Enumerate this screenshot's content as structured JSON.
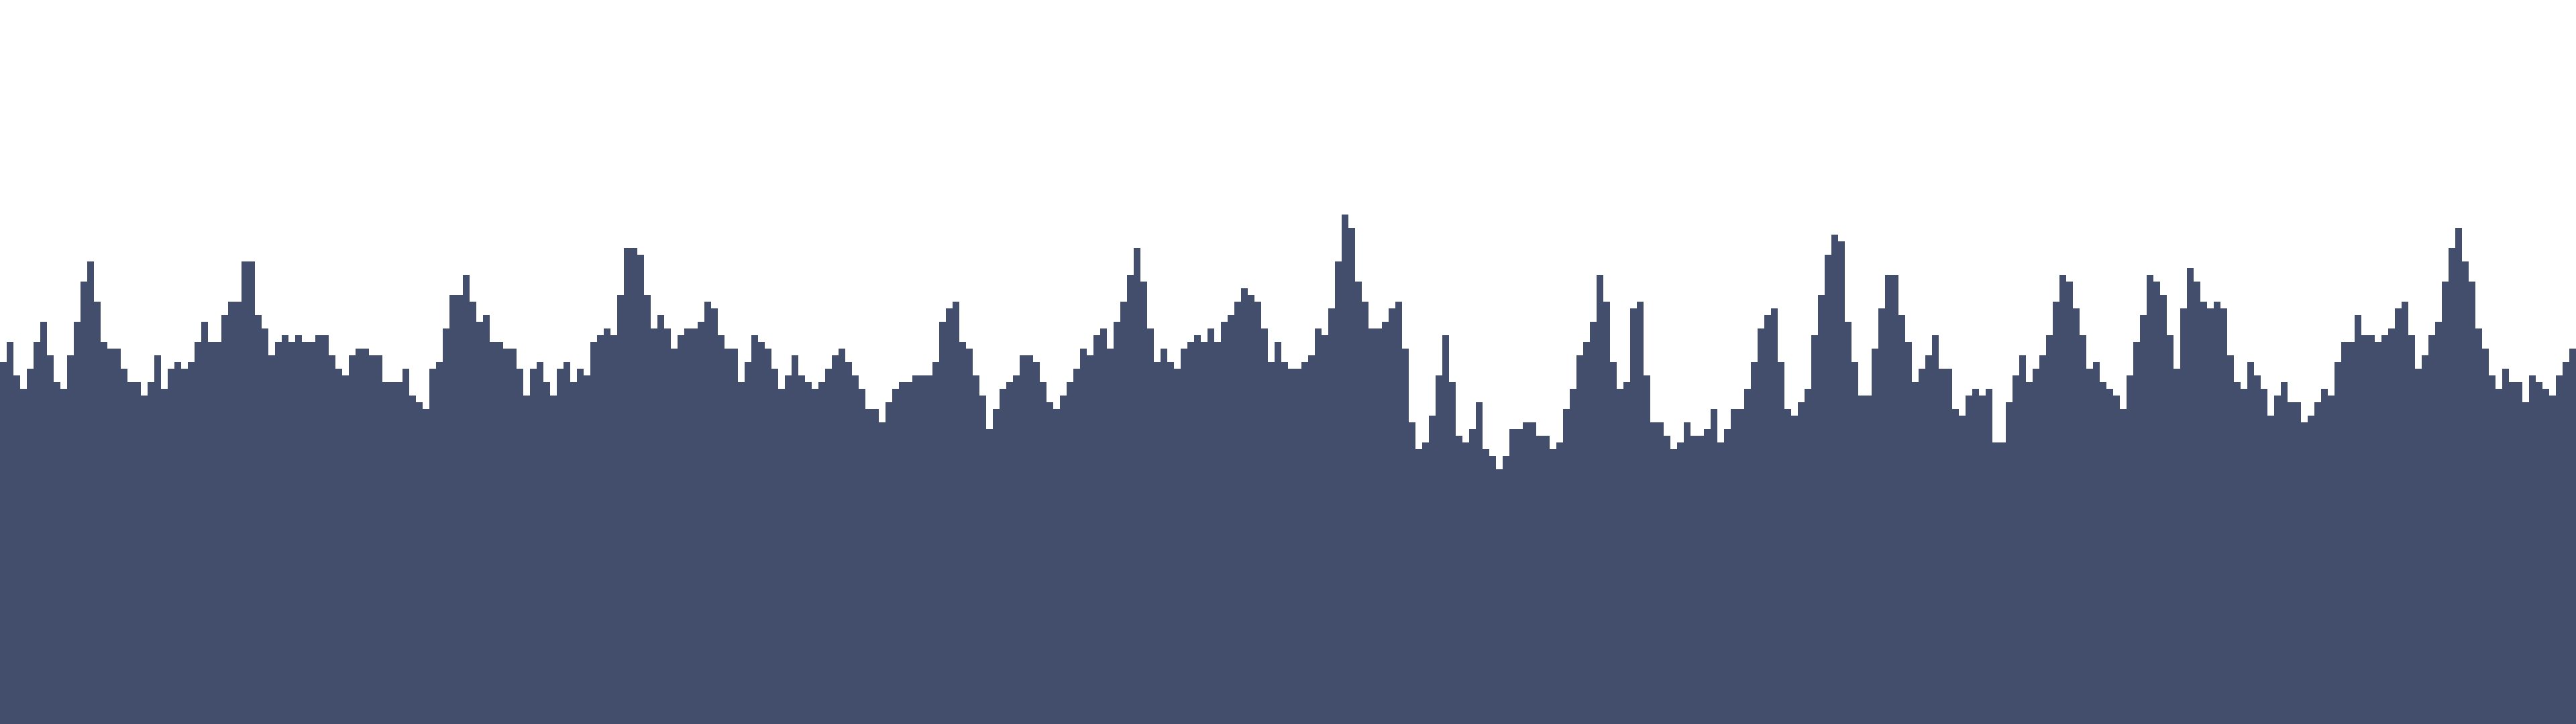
{
  "background_color": "#ffffff",
  "skyline": {
    "color": "#424e6b"
  }
}
